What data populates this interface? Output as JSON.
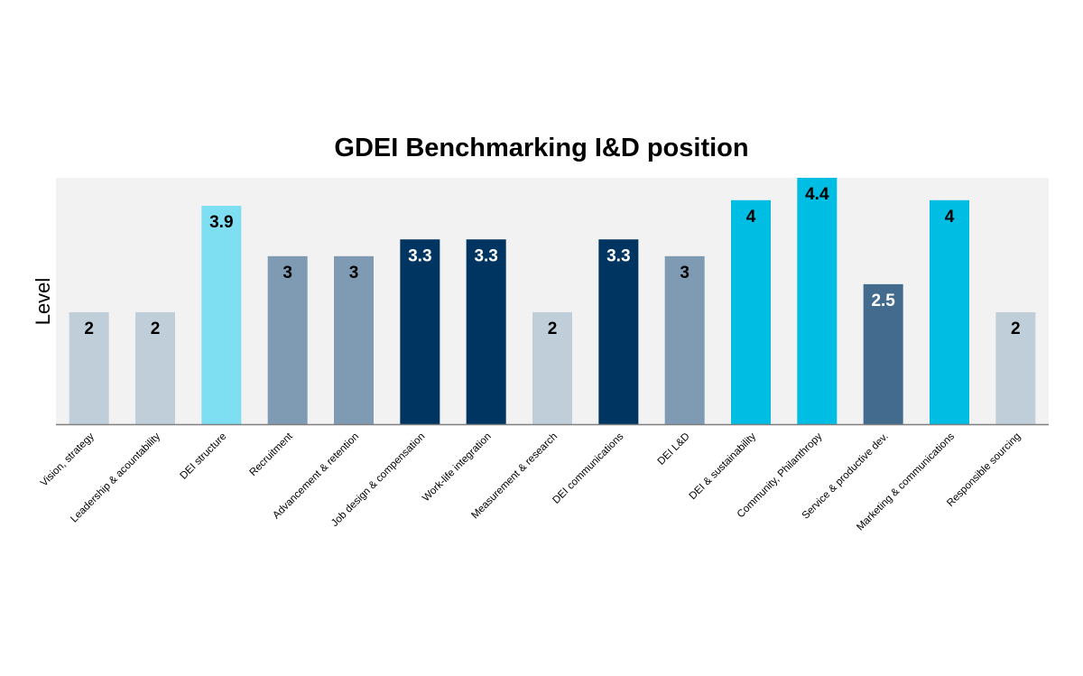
{
  "chart_data": {
    "type": "bar",
    "title": "GDEI Benchmarking I&D position",
    "xlabel": "",
    "ylabel": "Level",
    "ylim": [
      0,
      4.4
    ],
    "grid": false,
    "legend": "none",
    "plot_background": "#f2f2f2",
    "categories": [
      "Vision, strategy",
      "Leadership & acountability",
      "DEI structure",
      "Recruitment",
      "Advancement & retention",
      "Job design & compensation",
      "Work-life integration",
      "Measurement & research",
      "DEI communications",
      "DEI L&D",
      "DEI & sustainability",
      "Community, Philanthropy",
      "Service & productive dev.",
      "Marketing & communications",
      "Responsible sourcing"
    ],
    "values": [
      2,
      2,
      3.9,
      3,
      3,
      3.3,
      3.3,
      2,
      3.3,
      3,
      4,
      4.4,
      2.5,
      4,
      2
    ],
    "data_labels": [
      "2",
      "2",
      "3.9",
      "3",
      "3",
      "3.3",
      "3.3",
      "2",
      "3.3",
      "3",
      "4",
      "4.4",
      "2.5",
      "4",
      "2"
    ],
    "bar_colors": [
      "#c0ceda",
      "#c0ceda",
      "#7fdff2",
      "#7f9bb3",
      "#7f9bb3",
      "#003561",
      "#003561",
      "#c0ceda",
      "#003561",
      "#7f9bb3",
      "#00bde3",
      "#00bde3",
      "#436b8e",
      "#00bde3",
      "#c0ceda"
    ],
    "label_colors": [
      "#000",
      "#000",
      "#000",
      "#000",
      "#000",
      "#fff",
      "#fff",
      "#000",
      "#fff",
      "#000",
      "#000",
      "#000",
      "#fff",
      "#000",
      "#000"
    ]
  }
}
